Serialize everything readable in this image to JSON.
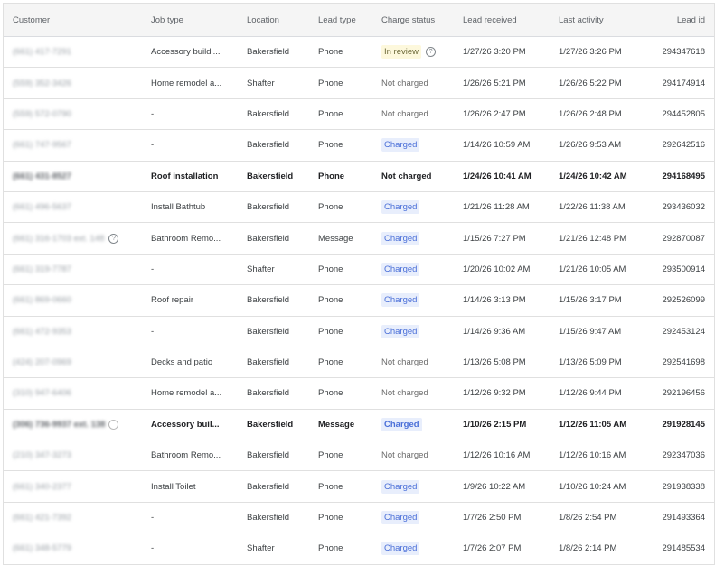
{
  "columns": [
    "Customer",
    "Job type",
    "Location",
    "Lead type",
    "Charge status",
    "Lead received",
    "Last activity",
    "Lead id"
  ],
  "colors": {
    "charged_bg": "#e8eefc",
    "charged_text": "#4a6fd8",
    "review_bg": "#fdf8dc"
  },
  "rows": [
    {
      "customer": "(661) 417-7291",
      "job": "Accessory buildi...",
      "location": "Bakersfield",
      "lead_type": "Phone",
      "status": "In review",
      "status_kind": "review",
      "received": "1/27/26 3:20 PM",
      "activity": "1/27/26 3:26 PM",
      "id": "294347618",
      "bold": false
    },
    {
      "customer": "(559) 352-3426",
      "job": "Home remodel a...",
      "location": "Shafter",
      "lead_type": "Phone",
      "status": "Not charged",
      "status_kind": "not",
      "received": "1/26/26 5:21 PM",
      "activity": "1/26/26 5:22 PM",
      "id": "294174914",
      "bold": false
    },
    {
      "customer": "(559) 572-0790",
      "job": "-",
      "location": "Bakersfield",
      "lead_type": "Phone",
      "status": "Not charged",
      "status_kind": "not",
      "received": "1/26/26 2:47 PM",
      "activity": "1/26/26 2:48 PM",
      "id": "294452805",
      "bold": false
    },
    {
      "customer": "(661) 747-9567",
      "job": "-",
      "location": "Bakersfield",
      "lead_type": "Phone",
      "status": "Charged",
      "status_kind": "charged",
      "received": "1/14/26 10:59 AM",
      "activity": "1/26/26 9:53 AM",
      "id": "292642516",
      "bold": false
    },
    {
      "customer": "(661) 431-8527",
      "job": "Roof installation",
      "location": "Bakersfield",
      "lead_type": "Phone",
      "status": "Not charged",
      "status_kind": "not",
      "received": "1/24/26 10:41 AM",
      "activity": "1/24/26 10:42 AM",
      "id": "294168495",
      "bold": true
    },
    {
      "customer": "(661) 496-5637",
      "job": "Install Bathtub",
      "location": "Bakersfield",
      "lead_type": "Phone",
      "status": "Charged",
      "status_kind": "charged",
      "received": "1/21/26 11:28 AM",
      "activity": "1/22/26 11:38 AM",
      "id": "293436032",
      "bold": false
    },
    {
      "customer": "(661) 316-1703 ext. 148",
      "job": "Bathroom Remo...",
      "location": "Bakersfield",
      "lead_type": "Message",
      "status": "Charged",
      "status_kind": "charged",
      "received": "1/15/26 7:27 PM",
      "activity": "1/21/26 12:48 PM",
      "id": "292870087",
      "bold": false,
      "help": true
    },
    {
      "customer": "(661) 319-7787",
      "job": "-",
      "location": "Shafter",
      "lead_type": "Phone",
      "status": "Charged",
      "status_kind": "charged",
      "received": "1/20/26 10:02 AM",
      "activity": "1/21/26 10:05 AM",
      "id": "293500914",
      "bold": false
    },
    {
      "customer": "(661) 869-0660",
      "job": "Roof repair",
      "location": "Bakersfield",
      "lead_type": "Phone",
      "status": "Charged",
      "status_kind": "charged",
      "received": "1/14/26 3:13 PM",
      "activity": "1/15/26 3:17 PM",
      "id": "292526099",
      "bold": false
    },
    {
      "customer": "(661) 472-9353",
      "job": "-",
      "location": "Bakersfield",
      "lead_type": "Phone",
      "status": "Charged",
      "status_kind": "charged",
      "received": "1/14/26 9:36 AM",
      "activity": "1/15/26 9:47 AM",
      "id": "292453124",
      "bold": false
    },
    {
      "customer": "(424) 207-0969",
      "job": "Decks and patio",
      "location": "Bakersfield",
      "lead_type": "Phone",
      "status": "Not charged",
      "status_kind": "not",
      "received": "1/13/26 5:08 PM",
      "activity": "1/13/26 5:09 PM",
      "id": "292541698",
      "bold": false
    },
    {
      "customer": "(310) 947-6406",
      "job": "Home remodel a...",
      "location": "Bakersfield",
      "lead_type": "Phone",
      "status": "Not charged",
      "status_kind": "not",
      "received": "1/12/26 9:32 PM",
      "activity": "1/12/26 9:44 PM",
      "id": "292196456",
      "bold": false
    },
    {
      "customer": "(306) 736-9937 ext. 138",
      "job": "Accessory buil...",
      "location": "Bakersfield",
      "lead_type": "Message",
      "status": "Charged",
      "status_kind": "charged",
      "received": "1/10/26 2:15 PM",
      "activity": "1/12/26 11:05 AM",
      "id": "291928145",
      "bold": true,
      "spinner": true
    },
    {
      "customer": "(210) 347-3273",
      "job": "Bathroom Remo...",
      "location": "Bakersfield",
      "lead_type": "Phone",
      "status": "Not charged",
      "status_kind": "not",
      "received": "1/12/26 10:16 AM",
      "activity": "1/12/26 10:16 AM",
      "id": "292347036",
      "bold": false
    },
    {
      "customer": "(661) 340-2377",
      "job": "Install Toilet",
      "location": "Bakersfield",
      "lead_type": "Phone",
      "status": "Charged",
      "status_kind": "charged",
      "received": "1/9/26 10:22 AM",
      "activity": "1/10/26 10:24 AM",
      "id": "291938338",
      "bold": false
    },
    {
      "customer": "(661) 421-7392",
      "job": "-",
      "location": "Bakersfield",
      "lead_type": "Phone",
      "status": "Charged",
      "status_kind": "charged",
      "received": "1/7/26 2:50 PM",
      "activity": "1/8/26 2:54 PM",
      "id": "291493364",
      "bold": false
    },
    {
      "customer": "(661) 348-5779",
      "job": "-",
      "location": "Shafter",
      "lead_type": "Phone",
      "status": "Charged",
      "status_kind": "charged",
      "received": "1/7/26 2:07 PM",
      "activity": "1/8/26 2:14 PM",
      "id": "291485534",
      "bold": false
    }
  ]
}
